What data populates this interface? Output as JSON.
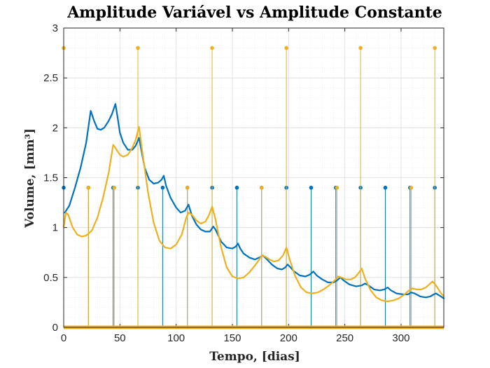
{
  "chart_data": {
    "type": "line",
    "title": "Amplitude Variável vs Amplitude Constante",
    "xlabel": "Tempo, [dias]",
    "ylabel": "Volume, [mm³]",
    "xlim": [
      0,
      338
    ],
    "ylim": [
      0,
      3
    ],
    "x_ticks": [
      "0",
      "50",
      "100",
      "150",
      "200",
      "250",
      "300"
    ],
    "y_ticks": [
      "0",
      "0.5",
      "1",
      "1.5",
      "2",
      "2.5",
      "3"
    ],
    "grid": true,
    "minor_grid": true,
    "colors": {
      "blue": "#0072BD",
      "orange": "#EDB120",
      "grid": "#e6e6e6"
    },
    "series": [
      {
        "key": "variable",
        "color": "#0072BD",
        "points": [
          [
            1,
            1.15
          ],
          [
            5,
            1.22
          ],
          [
            10,
            1.4
          ],
          [
            15,
            1.6
          ],
          [
            20,
            1.85
          ],
          [
            24,
            2.17
          ],
          [
            27,
            2.07
          ],
          [
            30,
            1.99
          ],
          [
            33,
            1.98
          ],
          [
            36,
            2.0
          ],
          [
            40,
            2.07
          ],
          [
            43,
            2.14
          ],
          [
            46,
            2.24
          ],
          [
            48,
            2.1
          ],
          [
            50,
            1.95
          ],
          [
            53,
            1.85
          ],
          [
            57,
            1.78
          ],
          [
            61,
            1.78
          ],
          [
            64,
            1.82
          ],
          [
            67,
            1.9
          ],
          [
            69,
            1.78
          ],
          [
            72,
            1.6
          ],
          [
            76,
            1.48
          ],
          [
            80,
            1.44
          ],
          [
            84,
            1.45
          ],
          [
            87,
            1.48
          ],
          [
            89,
            1.52
          ],
          [
            91,
            1.42
          ],
          [
            95,
            1.3
          ],
          [
            100,
            1.2
          ],
          [
            104,
            1.15
          ],
          [
            108,
            1.17
          ],
          [
            111,
            1.23
          ],
          [
            114,
            1.12
          ],
          [
            118,
            1.03
          ],
          [
            122,
            0.98
          ],
          [
            126,
            0.96
          ],
          [
            130,
            0.96
          ],
          [
            133,
            1.01
          ],
          [
            135,
            0.98
          ],
          [
            140,
            0.86
          ],
          [
            145,
            0.8
          ],
          [
            150,
            0.79
          ],
          [
            153,
            0.81
          ],
          [
            155,
            0.84
          ],
          [
            157,
            0.79
          ],
          [
            160,
            0.74
          ],
          [
            165,
            0.7
          ],
          [
            170,
            0.68
          ],
          [
            174,
            0.7
          ],
          [
            177,
            0.72
          ],
          [
            180,
            0.69
          ],
          [
            185,
            0.63
          ],
          [
            190,
            0.59
          ],
          [
            194,
            0.58
          ],
          [
            197,
            0.6
          ],
          [
            199,
            0.63
          ],
          [
            201,
            0.61
          ],
          [
            205,
            0.56
          ],
          [
            210,
            0.52
          ],
          [
            215,
            0.51
          ],
          [
            219,
            0.53
          ],
          [
            222,
            0.56
          ],
          [
            225,
            0.52
          ],
          [
            230,
            0.48
          ],
          [
            235,
            0.45
          ],
          [
            240,
            0.45
          ],
          [
            243,
            0.47
          ],
          [
            246,
            0.5
          ],
          [
            249,
            0.47
          ],
          [
            254,
            0.43
          ],
          [
            260,
            0.41
          ],
          [
            265,
            0.42
          ],
          [
            268,
            0.44
          ],
          [
            271,
            0.42
          ],
          [
            276,
            0.38
          ],
          [
            281,
            0.37
          ],
          [
            285,
            0.38
          ],
          [
            288,
            0.4
          ],
          [
            291,
            0.37
          ],
          [
            296,
            0.34
          ],
          [
            302,
            0.33
          ],
          [
            306,
            0.33
          ],
          [
            309,
            0.35
          ],
          [
            312,
            0.34
          ],
          [
            317,
            0.31
          ],
          [
            322,
            0.3
          ],
          [
            326,
            0.31
          ],
          [
            329,
            0.33
          ],
          [
            331,
            0.34
          ],
          [
            334,
            0.32
          ],
          [
            338,
            0.29
          ]
        ]
      },
      {
        "key": "constant",
        "color": "#EDB120",
        "points": [
          [
            0,
            1.01
          ],
          [
            2,
            1.15
          ],
          [
            4,
            1.13
          ],
          [
            8,
            1.0
          ],
          [
            12,
            0.93
          ],
          [
            16,
            0.91
          ],
          [
            20,
            0.92
          ],
          [
            25,
            0.97
          ],
          [
            30,
            1.1
          ],
          [
            35,
            1.3
          ],
          [
            40,
            1.55
          ],
          [
            44,
            1.83
          ],
          [
            47,
            1.78
          ],
          [
            50,
            1.73
          ],
          [
            53,
            1.71
          ],
          [
            57,
            1.73
          ],
          [
            61,
            1.8
          ],
          [
            64,
            1.88
          ],
          [
            67,
            2.01
          ],
          [
            70,
            1.75
          ],
          [
            75,
            1.35
          ],
          [
            80,
            1.05
          ],
          [
            85,
            0.87
          ],
          [
            90,
            0.8
          ],
          [
            95,
            0.79
          ],
          [
            100,
            0.83
          ],
          [
            105,
            0.93
          ],
          [
            109,
            1.1
          ],
          [
            111,
            1.15
          ],
          [
            114,
            1.13
          ],
          [
            118,
            1.07
          ],
          [
            122,
            1.04
          ],
          [
            126,
            1.06
          ],
          [
            129,
            1.12
          ],
          [
            132,
            1.21
          ],
          [
            135,
            1.08
          ],
          [
            140,
            0.8
          ],
          [
            145,
            0.6
          ],
          [
            150,
            0.51
          ],
          [
            155,
            0.49
          ],
          [
            160,
            0.5
          ],
          [
            165,
            0.55
          ],
          [
            170,
            0.62
          ],
          [
            174,
            0.68
          ],
          [
            176,
            0.72
          ],
          [
            179,
            0.71
          ],
          [
            183,
            0.68
          ],
          [
            187,
            0.66
          ],
          [
            191,
            0.67
          ],
          [
            195,
            0.72
          ],
          [
            198,
            0.8
          ],
          [
            201,
            0.68
          ],
          [
            206,
            0.51
          ],
          [
            211,
            0.4
          ],
          [
            216,
            0.35
          ],
          [
            221,
            0.34
          ],
          [
            226,
            0.35
          ],
          [
            231,
            0.38
          ],
          [
            236,
            0.42
          ],
          [
            241,
            0.47
          ],
          [
            244,
            0.51
          ],
          [
            247,
            0.5
          ],
          [
            251,
            0.48
          ],
          [
            255,
            0.48
          ],
          [
            259,
            0.5
          ],
          [
            262,
            0.54
          ],
          [
            265,
            0.59
          ],
          [
            268,
            0.49
          ],
          [
            273,
            0.37
          ],
          [
            278,
            0.3
          ],
          [
            283,
            0.27
          ],
          [
            288,
            0.26
          ],
          [
            293,
            0.27
          ],
          [
            298,
            0.29
          ],
          [
            303,
            0.33
          ],
          [
            307,
            0.37
          ],
          [
            310,
            0.39
          ],
          [
            314,
            0.38
          ],
          [
            318,
            0.38
          ],
          [
            322,
            0.4
          ],
          [
            325,
            0.43
          ],
          [
            328,
            0.46
          ],
          [
            331,
            0.42
          ],
          [
            335,
            0.35
          ],
          [
            338,
            0.31
          ]
        ]
      }
    ],
    "stems": [
      {
        "color": "#0072BD",
        "height": 1.4,
        "x": [
          0,
          22,
          44,
          66,
          88,
          110,
          132,
          154,
          176,
          198,
          220,
          242,
          264,
          286,
          308,
          330
        ]
      },
      {
        "color": "#EDB120",
        "height": 1.4,
        "x": [
          22,
          45,
          110,
          176,
          243,
          309
        ]
      },
      {
        "color": "#EDB120",
        "height": 2.8,
        "x": [
          0,
          66,
          132,
          198,
          264,
          330
        ]
      }
    ],
    "baseline": {
      "color": "#EDB120",
      "y": 0
    }
  }
}
